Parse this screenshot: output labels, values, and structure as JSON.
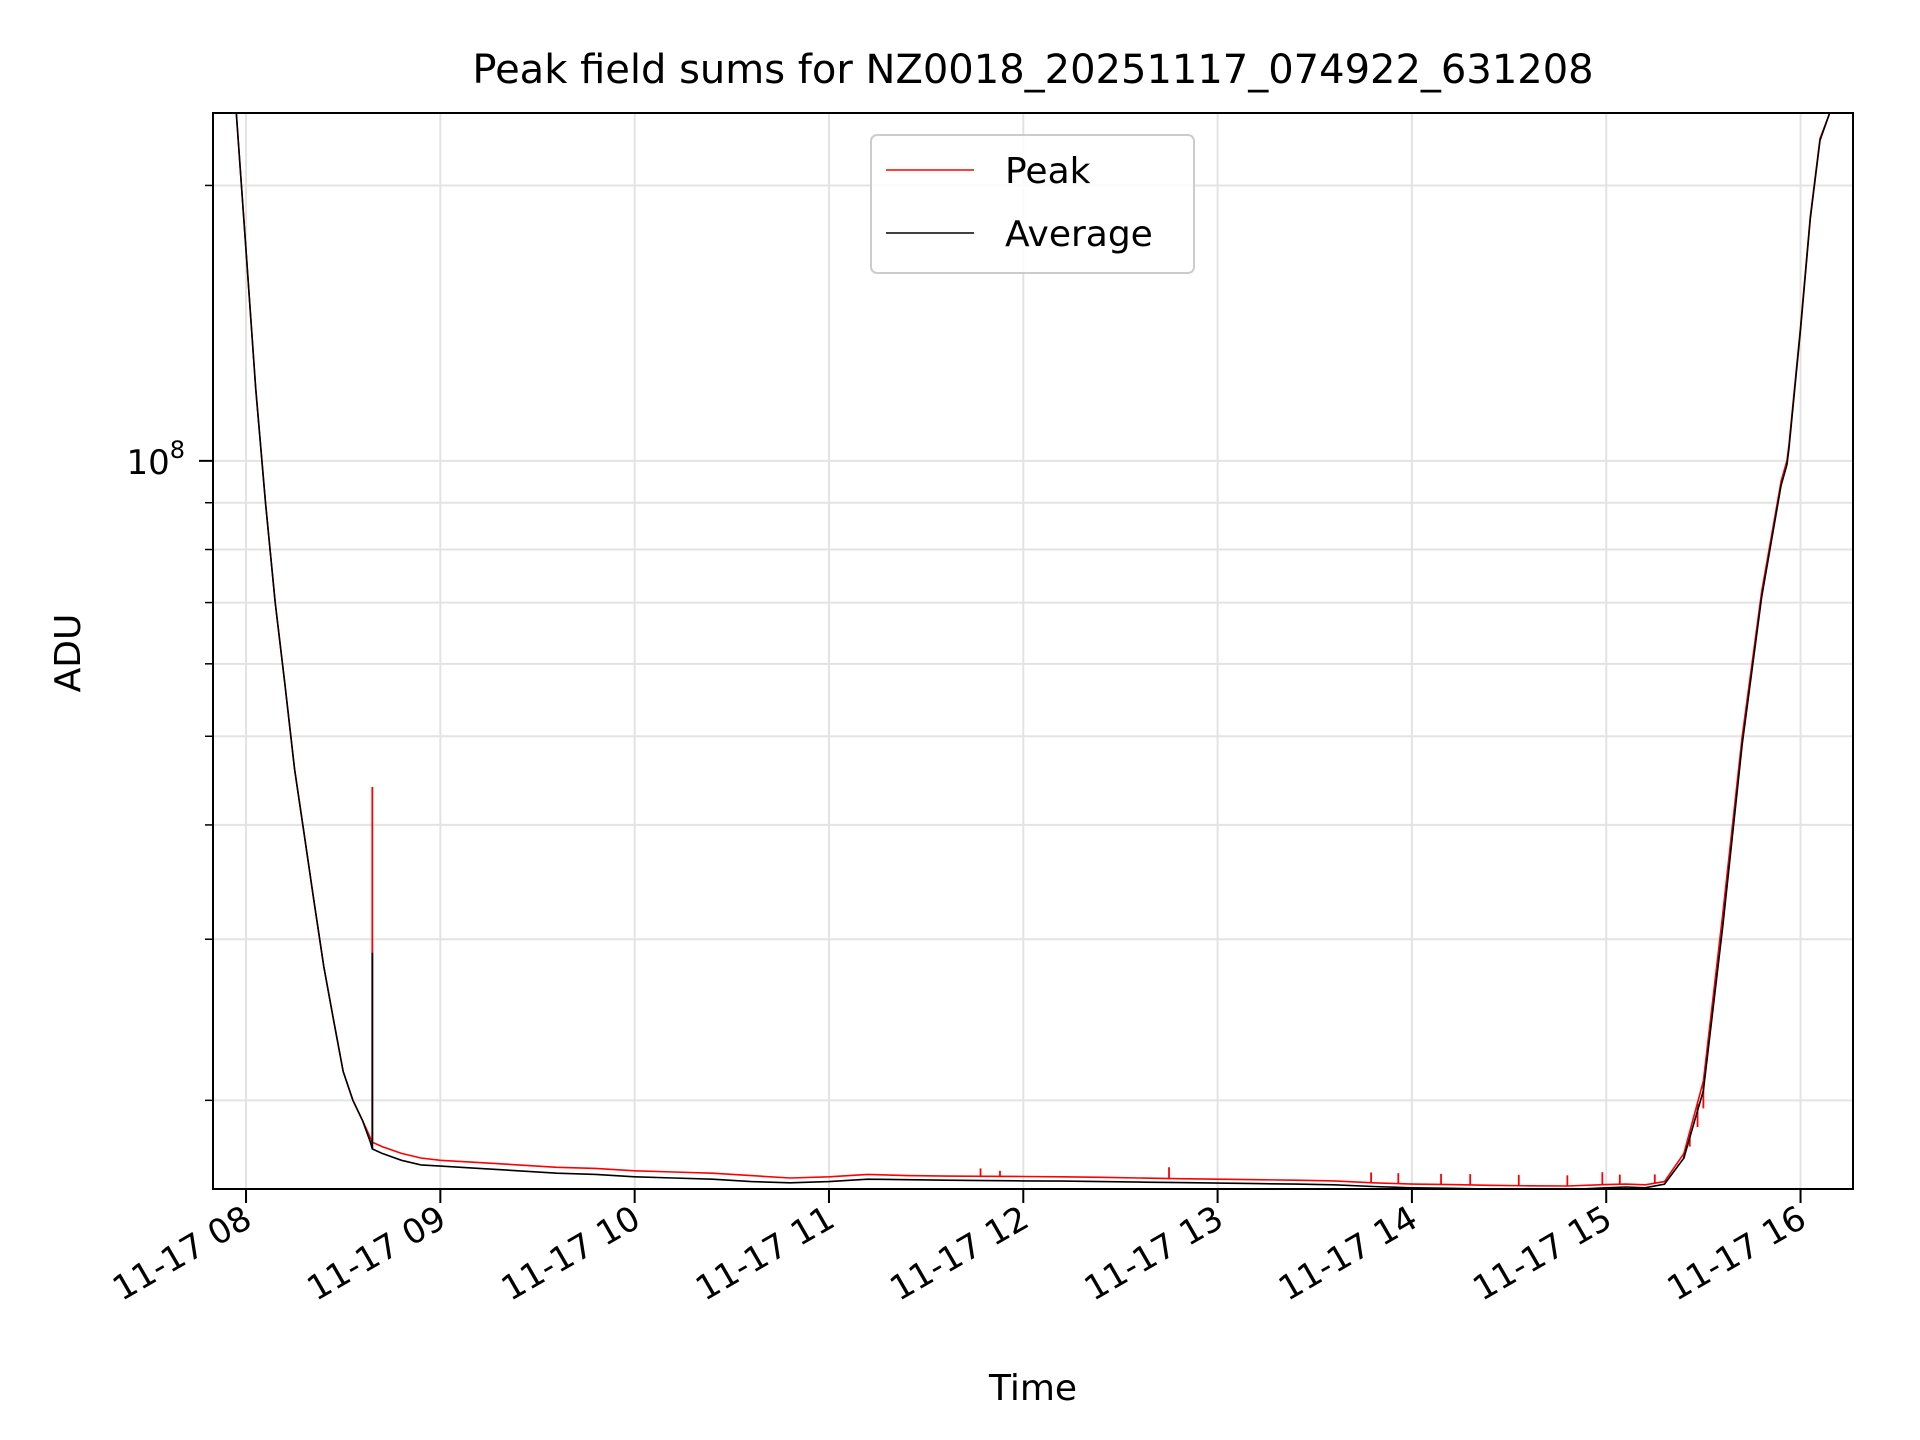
{
  "chart_data": {
    "type": "line",
    "title": "Peak field sums for NZ0018_20251117_074922_631208",
    "xlabel": "Time",
    "ylabel": "ADU",
    "yscale": "log",
    "ylim": [
      16000000,
      240000000
    ],
    "xlim_hours": [
      7.83,
      16.27
    ],
    "grid": true,
    "legend_location": "upper-center",
    "x_ticks": [
      {
        "value": 8,
        "label": "11-17 08"
      },
      {
        "value": 9,
        "label": "11-17 09"
      },
      {
        "value": 10,
        "label": "11-17 10"
      },
      {
        "value": 11,
        "label": "11-17 11"
      },
      {
        "value": 12,
        "label": "11-17 12"
      },
      {
        "value": 13,
        "label": "11-17 13"
      },
      {
        "value": 14,
        "label": "11-17 14"
      },
      {
        "value": 15,
        "label": "11-17 15"
      },
      {
        "value": 16,
        "label": "11-17 16"
      }
    ],
    "y_major_ticks": [
      {
        "value": 100000000,
        "base": "10",
        "exponent": "8"
      }
    ],
    "y_minor_ticks": [
      20000000,
      30000000,
      40000000,
      50000000,
      60000000,
      70000000,
      80000000,
      90000000,
      200000000
    ],
    "series": [
      {
        "name": "Peak",
        "color": "#ff0000",
        "x": [
          7.83,
          7.95,
          8.0,
          8.05,
          8.1,
          8.15,
          8.2,
          8.25,
          8.3,
          8.35,
          8.4,
          8.45,
          8.5,
          8.55,
          8.6,
          8.64,
          8.65,
          8.7,
          8.8,
          8.9,
          9.0,
          9.2,
          9.4,
          9.6,
          9.8,
          10.0,
          10.2,
          10.4,
          10.6,
          10.8,
          11.0,
          11.2,
          11.4,
          11.6,
          11.8,
          12.0,
          12.2,
          12.4,
          12.6,
          12.8,
          13.0,
          13.2,
          13.4,
          13.6,
          13.8,
          14.0,
          14.2,
          14.4,
          14.6,
          14.8,
          15.0,
          15.1,
          15.2,
          15.3,
          15.4,
          15.5,
          15.6,
          15.7,
          15.8,
          15.9,
          15.93,
          15.94,
          16.0,
          16.05,
          16.1,
          16.15,
          16.27
        ],
        "y": [
          240000000,
          240000000,
          170000000,
          120000000,
          90000000,
          70000000,
          57000000,
          46000000,
          39000000,
          33000000,
          28000000,
          24500000,
          21500000,
          20000000,
          19000000,
          18200000,
          18000000,
          17800000,
          17500000,
          17300000,
          17200000,
          17100000,
          17000000,
          16900000,
          16850000,
          16750000,
          16700000,
          16650000,
          16550000,
          16450000,
          16500000,
          16600000,
          16550000,
          16530000,
          16520000,
          16510000,
          16500000,
          16480000,
          16450000,
          16420000,
          16400000,
          16380000,
          16360000,
          16330000,
          16250000,
          16200000,
          16180000,
          16150000,
          16130000,
          16120000,
          16180000,
          16200000,
          16170000,
          16300000,
          17500000,
          21000000,
          32000000,
          50000000,
          72000000,
          95000000,
          100000000,
          104000000,
          140000000,
          185000000,
          225000000,
          240000000,
          240000000
        ],
        "spikes": [
          {
            "x": 8.65,
            "y": 44000000
          },
          {
            "x": 11.78,
            "y": 16850000
          },
          {
            "x": 11.88,
            "y": 16750000
          },
          {
            "x": 12.75,
            "y": 16900000
          },
          {
            "x": 13.79,
            "y": 16680000
          },
          {
            "x": 13.93,
            "y": 16650000
          },
          {
            "x": 14.15,
            "y": 16620000
          },
          {
            "x": 14.3,
            "y": 16610000
          },
          {
            "x": 14.55,
            "y": 16580000
          },
          {
            "x": 14.8,
            "y": 16560000
          },
          {
            "x": 14.98,
            "y": 16690000
          },
          {
            "x": 15.07,
            "y": 16590000
          },
          {
            "x": 15.25,
            "y": 16600000
          },
          {
            "x": 15.36,
            "y": 17000000
          },
          {
            "x": 15.4,
            "y": 17300000
          },
          {
            "x": 15.43,
            "y": 17800000
          },
          {
            "x": 15.47,
            "y": 18700000
          },
          {
            "x": 15.5,
            "y": 19600000
          }
        ]
      },
      {
        "name": "Average",
        "color": "#000000",
        "x": [
          7.83,
          7.95,
          8.0,
          8.05,
          8.1,
          8.15,
          8.2,
          8.25,
          8.3,
          8.35,
          8.4,
          8.45,
          8.5,
          8.55,
          8.6,
          8.64,
          8.65,
          8.7,
          8.8,
          8.9,
          9.0,
          9.2,
          9.4,
          9.6,
          9.8,
          10.0,
          10.2,
          10.4,
          10.6,
          10.8,
          11.0,
          11.2,
          11.4,
          11.6,
          11.8,
          12.0,
          12.2,
          12.4,
          12.6,
          12.8,
          13.0,
          13.2,
          13.4,
          13.6,
          13.8,
          14.0,
          14.2,
          14.4,
          14.6,
          14.8,
          15.0,
          15.1,
          15.2,
          15.3,
          15.4,
          15.5,
          15.6,
          15.7,
          15.8,
          15.9,
          15.93,
          15.94,
          16.0,
          16.05,
          16.1,
          16.15,
          16.27
        ],
        "y": [
          240000000,
          240000000,
          170000000,
          120000000,
          90000000,
          70000000,
          57000000,
          46000000,
          39000000,
          33000000,
          28000000,
          24500000,
          21500000,
          20000000,
          19000000,
          18000000,
          17700000,
          17500000,
          17200000,
          17000000,
          16950000,
          16850000,
          16750000,
          16650000,
          16600000,
          16500000,
          16450000,
          16400000,
          16300000,
          16250000,
          16300000,
          16400000,
          16380000,
          16360000,
          16340000,
          16330000,
          16320000,
          16300000,
          16280000,
          16260000,
          16240000,
          16220000,
          16200000,
          16170000,
          16100000,
          16050000,
          16030000,
          16000000,
          15990000,
          15980000,
          16050000,
          16080000,
          16050000,
          16200000,
          17300000,
          20500000,
          31000000,
          49000000,
          71000000,
          94000000,
          99000000,
          103000000,
          139000000,
          184000000,
          224000000,
          240000000,
          240000000
        ],
        "spikes": [
          {
            "x": 8.65,
            "y": 29000000
          }
        ]
      }
    ]
  }
}
